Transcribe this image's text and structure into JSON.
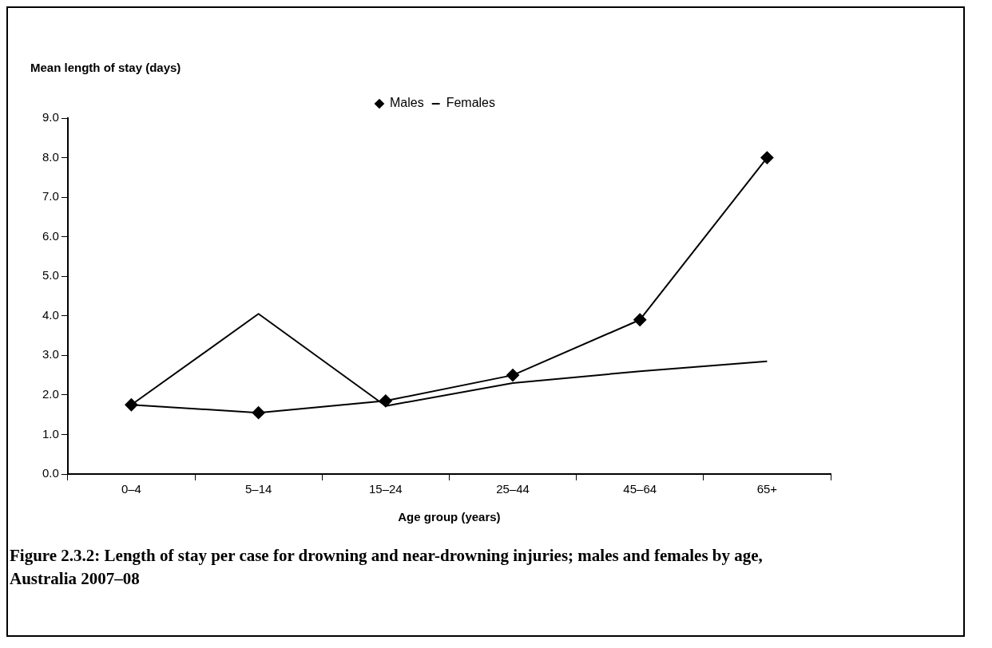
{
  "chart_data": {
    "type": "line",
    "title": "Figure 2.3.2: Length of stay per case for drowning and near-drowning injuries; males and females by age, Australia 2007–08",
    "xlabel": "Age group (years)",
    "ylabel": "Mean length of stay (days)",
    "categories": [
      "0–4",
      "5–14",
      "15–24",
      "25–44",
      "45–64",
      "65+"
    ],
    "series": [
      {
        "name": "Males",
        "color": "#000000",
        "marker": "diamond",
        "values": [
          1.75,
          1.55,
          1.85,
          2.5,
          3.9,
          8.0
        ]
      },
      {
        "name": "Females",
        "color": "#000000",
        "marker": "none",
        "values": [
          1.75,
          4.05,
          1.72,
          2.3,
          2.6,
          2.85
        ]
      }
    ],
    "ylim": [
      0,
      9
    ],
    "yticks": [
      {
        "value": 0,
        "label": "0.0"
      },
      {
        "value": 1,
        "label": "1.0"
      },
      {
        "value": 2,
        "label": "2.0"
      },
      {
        "value": 3,
        "label": "3.0"
      },
      {
        "value": 4,
        "label": "4.0"
      },
      {
        "value": 5,
        "label": "5.0"
      },
      {
        "value": 6,
        "label": "6.0"
      },
      {
        "value": 7,
        "label": "7.0"
      },
      {
        "value": 8,
        "label": "8.0"
      },
      {
        "value": 9,
        "label": "9.0"
      }
    ],
    "grid": false,
    "legend": "top",
    "line_style": "solid"
  }
}
